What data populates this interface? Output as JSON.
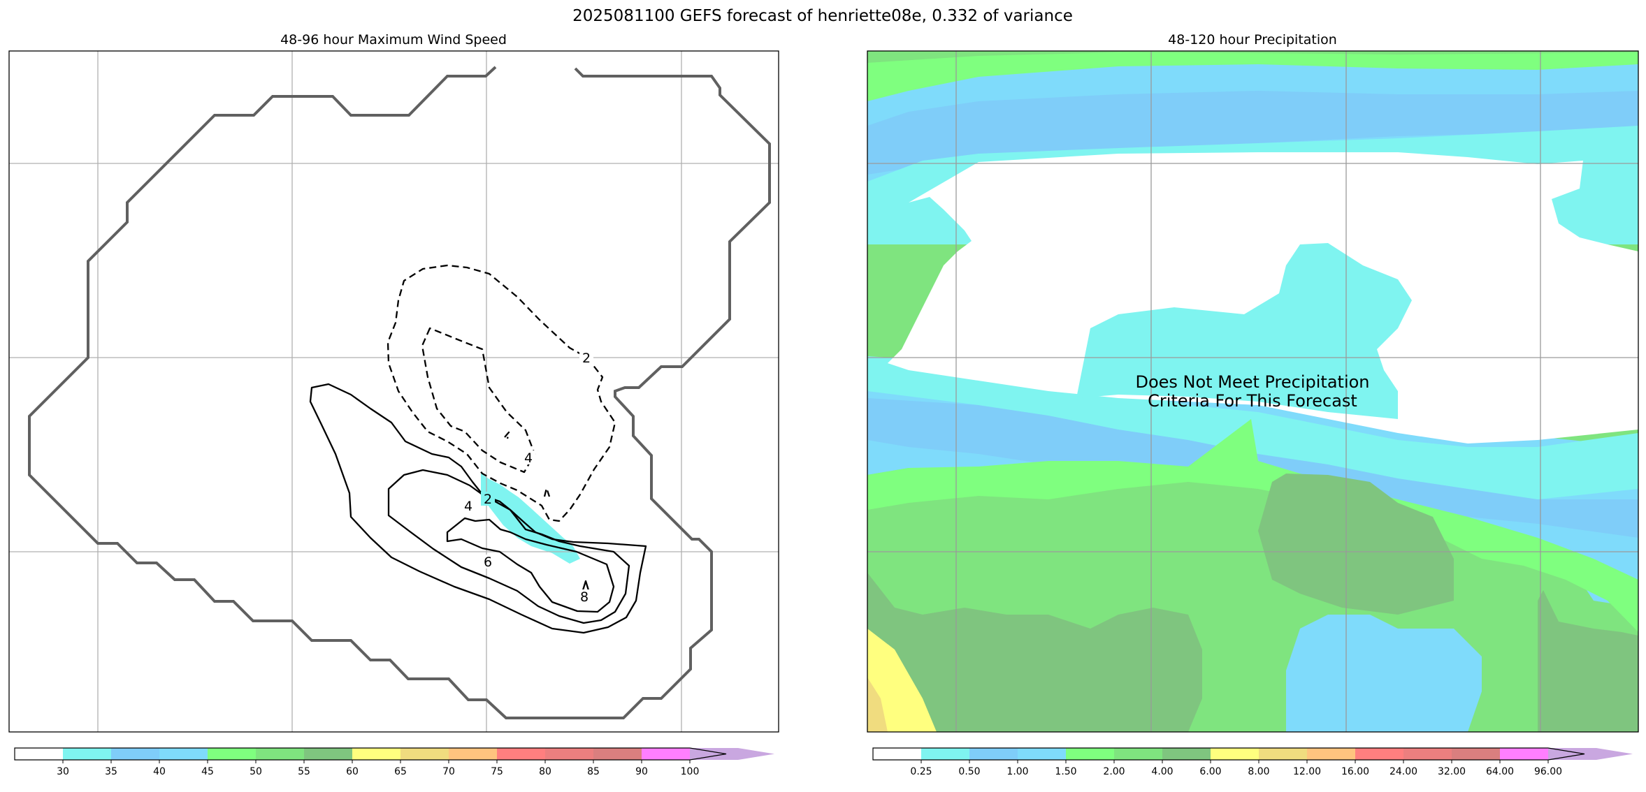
{
  "title": "2025081100 GEFS forecast of henriette08e, 0.332 of variance",
  "panels": {
    "wind": {
      "title": "48-96 hour Maximum Wind Speed"
    },
    "precip": {
      "title": "48-120 hour Precipitation",
      "note_line1": "Does Not Meet Precipitation",
      "note_line2": "Criteria For This Forecast"
    }
  },
  "colors": {
    "outline": "#606060",
    "grid": "#b0b0b0",
    "wind_levels": [
      "#ffffff",
      "#7ff4f0",
      "#7fcdf9",
      "#7fdbfb",
      "#7fff7f",
      "#7fe47f",
      "#7fc57f",
      "#ffff7f",
      "#f0dc7f",
      "#ffc47f",
      "#ff7f7f",
      "#ec7f7f",
      "#da7f7f",
      "#ff7fff",
      "#c9a7e0"
    ],
    "precip_levels": [
      "#ffffff",
      "#7ff4f0",
      "#7fcdf9",
      "#7fdbfb",
      "#7fff7f",
      "#7fe47f",
      "#7fc57f",
      "#ffff7f",
      "#f0dc7f",
      "#ffc47f",
      "#ff7f7f",
      "#ec7f7f",
      "#da7f7f",
      "#ff7fff",
      "#c9a7e0"
    ]
  },
  "chart_data": [
    {
      "type": "heatmap",
      "title": "48-96 hour Maximum Wind Speed",
      "contour_labels": [
        "2",
        "4",
        "2",
        "4",
        "6",
        "8"
      ],
      "colorbar": {
        "ticks": [
          "30",
          "35",
          "40",
          "45",
          "50",
          "55",
          "60",
          "65",
          "70",
          "75",
          "80",
          "85",
          "90",
          "100"
        ],
        "extend": "max"
      },
      "grid": true
    },
    {
      "type": "heatmap",
      "title": "48-120 hour Precipitation",
      "colorbar": {
        "ticks": [
          "0.25",
          "0.50",
          "1.00",
          "1.50",
          "2.00",
          "4.00",
          "6.00",
          "8.00",
          "12.00",
          "16.00",
          "24.00",
          "32.00",
          "64.00",
          "96.00"
        ],
        "extend": "max"
      },
      "grid": true
    }
  ]
}
